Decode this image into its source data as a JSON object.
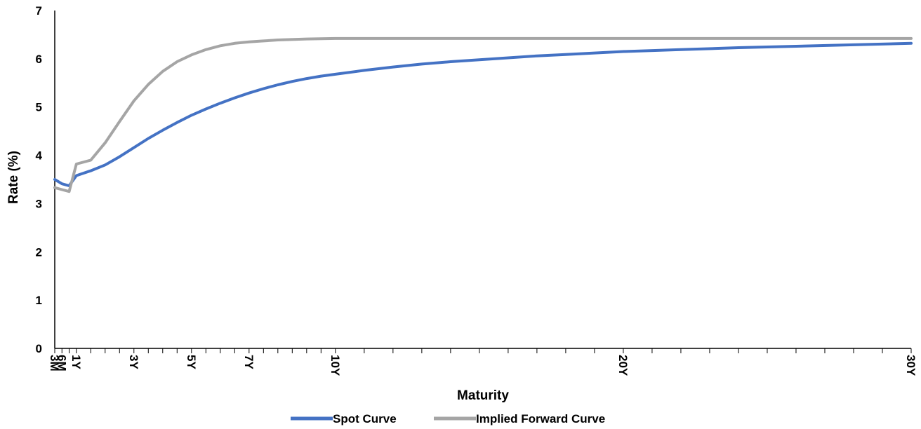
{
  "chart_data": {
    "type": "line",
    "title": "",
    "xlabel": "Maturity",
    "ylabel": "Rate (%)",
    "ylim": [
      0,
      7
    ],
    "y_ticks": [
      "0",
      "1",
      "2",
      "3",
      "4",
      "5",
      "6",
      "7"
    ],
    "x_unit": "years",
    "xlim": [
      0.25,
      30
    ],
    "x_tick_labels": [
      {
        "x": 0.25,
        "label": "3M"
      },
      {
        "x": 0.5,
        "label": "6M"
      },
      {
        "x": 1,
        "label": "1Y"
      },
      {
        "x": 3,
        "label": "3Y"
      },
      {
        "x": 5,
        "label": "5Y"
      },
      {
        "x": 7,
        "label": "7Y"
      },
      {
        "x": 10,
        "label": "10Y"
      },
      {
        "x": 20,
        "label": "20Y"
      },
      {
        "x": 30,
        "label": "30Y"
      }
    ],
    "grid": false,
    "legend_position": "bottom",
    "series": [
      {
        "name": "Spot Curve",
        "color": "#4472C4",
        "points": [
          [
            0.25,
            3.5
          ],
          [
            0.5,
            3.41
          ],
          [
            0.75,
            3.37
          ],
          [
            1,
            3.58
          ],
          [
            1.5,
            3.68
          ],
          [
            2,
            3.8
          ],
          [
            2.5,
            3.97
          ],
          [
            3,
            4.16
          ],
          [
            3.5,
            4.35
          ],
          [
            4,
            4.52
          ],
          [
            4.5,
            4.68
          ],
          [
            5,
            4.83
          ],
          [
            5.5,
            4.96
          ],
          [
            6,
            5.08
          ],
          [
            6.5,
            5.19
          ],
          [
            7,
            5.29
          ],
          [
            7.5,
            5.38
          ],
          [
            8,
            5.46
          ],
          [
            8.5,
            5.53
          ],
          [
            9,
            5.59
          ],
          [
            9.5,
            5.64
          ],
          [
            10,
            5.68
          ],
          [
            11,
            5.76
          ],
          [
            12,
            5.83
          ],
          [
            13,
            5.89
          ],
          [
            14,
            5.94
          ],
          [
            15,
            5.98
          ],
          [
            16,
            6.02
          ],
          [
            17,
            6.06
          ],
          [
            18,
            6.09
          ],
          [
            19,
            6.12
          ],
          [
            20,
            6.15
          ],
          [
            22,
            6.19
          ],
          [
            24,
            6.23
          ],
          [
            26,
            6.26
          ],
          [
            28,
            6.29
          ],
          [
            30,
            6.32
          ]
        ]
      },
      {
        "name": "Implied Forward Curve",
        "color": "#A5A5A5",
        "points": [
          [
            0.25,
            3.33
          ],
          [
            0.5,
            3.29
          ],
          [
            0.75,
            3.25
          ],
          [
            1,
            3.82
          ],
          [
            1.5,
            3.9
          ],
          [
            2,
            4.26
          ],
          [
            2.5,
            4.7
          ],
          [
            3,
            5.13
          ],
          [
            3.5,
            5.47
          ],
          [
            4,
            5.74
          ],
          [
            4.5,
            5.94
          ],
          [
            5,
            6.08
          ],
          [
            5.5,
            6.19
          ],
          [
            6,
            6.27
          ],
          [
            6.5,
            6.32
          ],
          [
            7,
            6.35
          ],
          [
            7.5,
            6.37
          ],
          [
            8,
            6.39
          ],
          [
            9,
            6.41
          ],
          [
            10,
            6.42
          ],
          [
            12,
            6.42
          ],
          [
            15,
            6.42
          ],
          [
            20,
            6.42
          ],
          [
            25,
            6.42
          ],
          [
            30,
            6.42
          ]
        ]
      }
    ]
  }
}
